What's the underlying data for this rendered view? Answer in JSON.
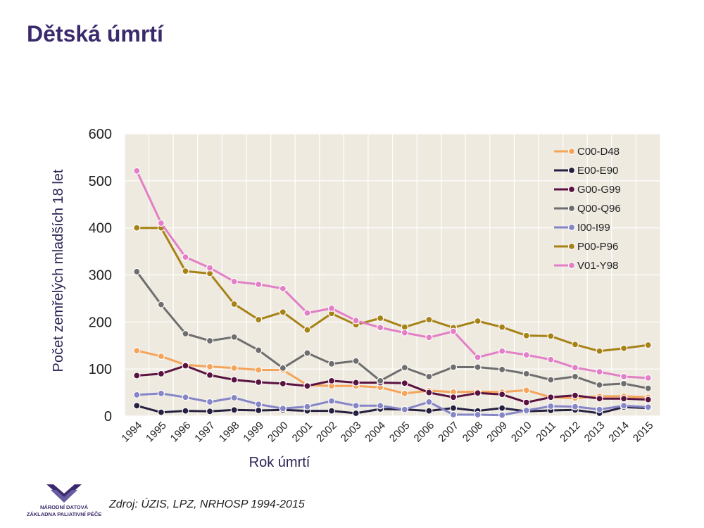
{
  "page": {
    "title": "Dětská úmrtí",
    "source": "Zdroj: ÚZIS, LPZ, NRHOSP 1994-2015"
  },
  "logo": {
    "line1": "NÁRODNÍ DATOVÁ",
    "line2": "ZÁKLADNA PALIATIVNÍ PÉČE"
  },
  "colors": {
    "plot_background": "#eeeae0",
    "grid": "#ffffff",
    "title": "#3b2a6b"
  },
  "chart_data": {
    "type": "line",
    "title": "",
    "xlabel": "Rok úmrtí",
    "ylabel": "Počet zemřelých mladších 18 let",
    "ylim": [
      0,
      600
    ],
    "yticks": [
      0,
      100,
      200,
      300,
      400,
      500,
      600
    ],
    "grid": true,
    "legend_position": "top-right",
    "x": [
      "1994",
      "1995",
      "1996",
      "1997",
      "1998",
      "1999",
      "2000",
      "2001",
      "2002",
      "2003",
      "2004",
      "2005",
      "2006",
      "2007",
      "2008",
      "2009",
      "2010",
      "2011",
      "2012",
      "2013",
      "2014",
      "2015"
    ],
    "series": [
      {
        "name": "C00-D48",
        "color": "#f5a45a",
        "values": [
          139,
          127,
          109,
          105,
          102,
          98,
          98,
          66,
          64,
          64,
          61,
          48,
          54,
          51,
          52,
          51,
          55,
          40,
          38,
          42,
          42,
          40
        ]
      },
      {
        "name": "E00-E90",
        "color": "#252040",
        "values": [
          22,
          8,
          11,
          10,
          13,
          12,
          13,
          11,
          11,
          6,
          15,
          14,
          11,
          17,
          11,
          17,
          10,
          12,
          13,
          6,
          19,
          17
        ]
      },
      {
        "name": "G00-G99",
        "color": "#5a1240",
        "values": [
          86,
          90,
          107,
          87,
          77,
          72,
          69,
          64,
          75,
          71,
          71,
          70,
          50,
          40,
          49,
          46,
          29,
          40,
          44,
          37,
          37,
          35
        ]
      },
      {
        "name": "Q00-Q96",
        "color": "#6e6e6e",
        "values": [
          307,
          237,
          175,
          160,
          168,
          140,
          102,
          134,
          111,
          117,
          75,
          103,
          84,
          104,
          104,
          99,
          90,
          77,
          84,
          66,
          69,
          59
        ]
      },
      {
        "name": "I00-I99",
        "color": "#8585c7",
        "values": [
          45,
          48,
          40,
          30,
          39,
          25,
          16,
          20,
          32,
          22,
          22,
          14,
          30,
          3,
          3,
          2,
          12,
          21,
          20,
          14,
          22,
          19
        ]
      },
      {
        "name": "P00-P96",
        "color": "#a68217",
        "values": [
          400,
          400,
          308,
          303,
          238,
          205,
          221,
          183,
          218,
          194,
          208,
          189,
          205,
          188,
          202,
          189,
          171,
          170,
          152,
          138,
          144,
          151
        ]
      },
      {
        "name": "V01-Y98",
        "color": "#e27fc6",
        "values": [
          521,
          410,
          338,
          315,
          286,
          280,
          271,
          219,
          229,
          203,
          188,
          177,
          167,
          180,
          125,
          138,
          130,
          120,
          103,
          94,
          84,
          81
        ]
      }
    ]
  }
}
